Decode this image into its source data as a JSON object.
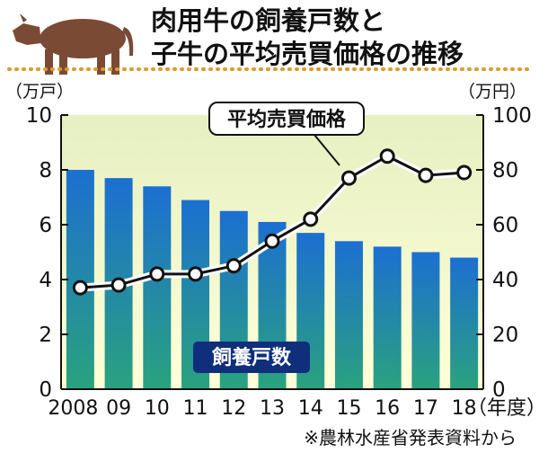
{
  "header": {
    "title_line1": "肉用牛の飼養戸数と",
    "title_line2": "子牛の平均売買価格の推移",
    "cow_icon": "cow-icon"
  },
  "axes": {
    "left_unit": "（万戸）",
    "right_unit": "（万円）",
    "x_unit": "（年度）"
  },
  "source_note": "※農林水産省発表資料から",
  "colors": {
    "bar_top": "#1c6fd1",
    "bar_bottom": "#2aa27e",
    "plot_bg_top": "#e6f0c2",
    "plot_bg_bottom": "#ffffd8",
    "line": "#111111",
    "dots": "#e08a1e",
    "legend_bg": "#0f2f7c",
    "cow": "#7a4a35"
  },
  "chart_data": {
    "type": "bar+line",
    "categories": [
      "2008",
      "09",
      "10",
      "11",
      "12",
      "13",
      "14",
      "15",
      "16",
      "17",
      "18"
    ],
    "series": [
      {
        "name": "飼養戸数",
        "type": "bar",
        "axis": "left",
        "values": [
          8.0,
          7.7,
          7.4,
          6.9,
          6.5,
          6.1,
          5.7,
          5.4,
          5.2,
          5.0,
          4.8
        ]
      },
      {
        "name": "平均売買価格",
        "type": "line",
        "axis": "right",
        "values": [
          37,
          38,
          42,
          42,
          45,
          54,
          62,
          77,
          85,
          78,
          79
        ]
      }
    ],
    "yleft": {
      "min": 0,
      "max": 10,
      "ticks": [
        0,
        2,
        4,
        6,
        8,
        10
      ]
    },
    "yright": {
      "min": 0,
      "max": 100,
      "ticks": [
        0,
        20,
        40,
        60,
        80,
        100
      ]
    },
    "grid": false,
    "legend": [
      {
        "label": "飼養戸数",
        "series": 0
      },
      {
        "label": "平均売買価格",
        "series": 1
      }
    ]
  }
}
